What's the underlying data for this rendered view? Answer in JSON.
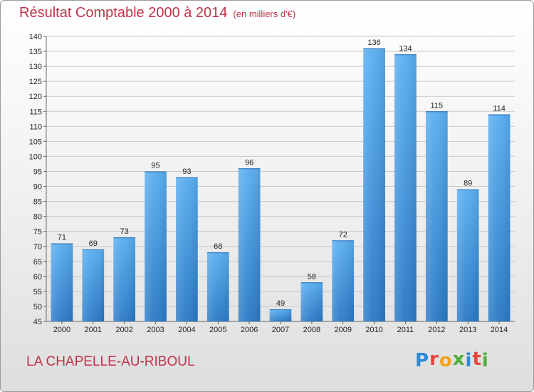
{
  "header": {
    "title": "Résultat Comptable 2000 à 2014",
    "subtitle": "(en milliers d'€)"
  },
  "footer": {
    "commune": "LA CHAPELLE-AU-RIBOUL",
    "logo_letters": [
      "P",
      "r",
      "o",
      "x",
      "i",
      "t",
      "i"
    ],
    "logo_colors": [
      "#2b8bd6",
      "#e8463c",
      "#f2a21a",
      "#4fae3a",
      "#2b8bd6",
      "#e8463c",
      "#4fae3a"
    ]
  },
  "colors": {
    "bar_top": "#5aaef0",
    "bar_bottom": "#2a7ac6",
    "grid": "#c8c8c8",
    "accent": "#c0334a"
  },
  "chart_data": {
    "type": "bar",
    "categories": [
      "2000",
      "2001",
      "2002",
      "2003",
      "2004",
      "2005",
      "2006",
      "2007",
      "2008",
      "2009",
      "2010",
      "2011",
      "2012",
      "2013",
      "2014"
    ],
    "values": [
      71,
      69,
      73,
      95,
      93,
      68,
      96,
      49,
      58,
      72,
      136,
      134,
      115,
      89,
      114
    ],
    "title": "Résultat Comptable 2000 à 2014",
    "subtitle": "(en milliers d'€)",
    "xlabel": "",
    "ylabel": "",
    "ylim": [
      45,
      140
    ],
    "yticks": [
      45,
      50,
      55,
      60,
      65,
      70,
      75,
      80,
      85,
      90,
      95,
      100,
      105,
      110,
      115,
      120,
      125,
      130,
      135,
      140
    ],
    "grid": true,
    "legend": "none"
  }
}
